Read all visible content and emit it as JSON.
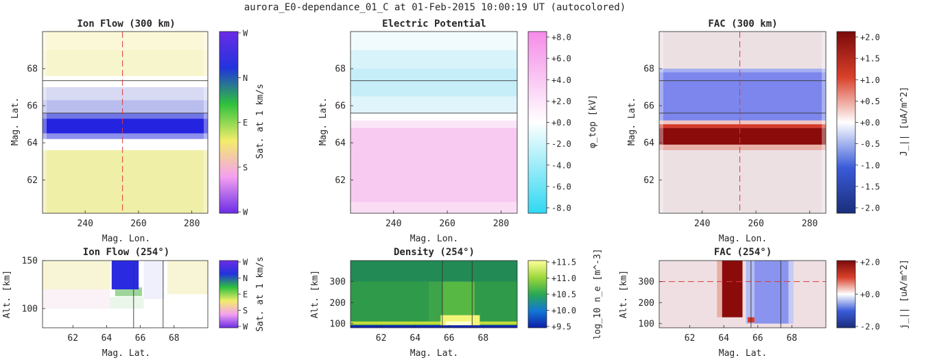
{
  "figure": {
    "suptitle": "aurora_E0-dependance_01_C at 01-Feb-2015 10:00:19 UT (autocolored)"
  },
  "colors": {
    "flow_wheel": [
      "#6a2ce6",
      "#f4a0f0",
      "#f2ed6a",
      "#2fc23c",
      "#2233dd",
      "#6a2ce6"
    ],
    "potential": [
      "#2fd8f2",
      "#ffffff",
      "#f58be8"
    ],
    "fac": [
      "#1a2e7a",
      "#3a5bd9",
      "#ffffff",
      "#d9402a",
      "#7a0a0a"
    ],
    "density": [
      "#0d1ea8",
      "#1277d6",
      "#2aa852",
      "#9ed83a",
      "#ffff99"
    ],
    "marker_line": "#d93a3a",
    "arc_line": "#333333"
  },
  "chart_data": [
    {
      "id": "ion-flow-map",
      "type": "heatmap",
      "title": "Ion Flow (300 km)",
      "xlabel": "Mag. Lon.",
      "ylabel": "Mag. Lat.",
      "xlim": [
        224,
        286
      ],
      "ylim": [
        60.2,
        70
      ],
      "xticks": [
        240,
        260,
        280
      ],
      "yticks": [
        62,
        64,
        66,
        68
      ],
      "hlines": [
        65.6,
        67.35
      ],
      "vline": 254,
      "colorbar": {
        "label": "Sat. at 1 km/s",
        "ticks": [
          "W",
          "N",
          "E",
          "S",
          "W"
        ],
        "colormap": "flow_wheel",
        "reversed": true
      },
      "bands": [
        {
          "from": 69.0,
          "to": 70.0,
          "color": "#fbf8d8"
        },
        {
          "from": 67.6,
          "to": 69.0,
          "color": "#f7f5cb"
        },
        {
          "from": 67.0,
          "to": 67.6,
          "color": "#ffffff"
        },
        {
          "from": 66.3,
          "to": 67.0,
          "color": "#d8d9f3"
        },
        {
          "from": 65.6,
          "to": 66.3,
          "color": "#b9bdee"
        },
        {
          "from": 65.3,
          "to": 65.6,
          "color": "#6f76e6"
        },
        {
          "from": 64.5,
          "to": 65.3,
          "color": "#2323e0"
        },
        {
          "from": 64.2,
          "to": 64.5,
          "color": "#8c90ec"
        },
        {
          "from": 63.6,
          "to": 64.2,
          "color": "#ffffff"
        },
        {
          "from": 60.2,
          "to": 63.6,
          "color": "#f0efa8"
        }
      ]
    },
    {
      "id": "electric-potential-map",
      "type": "heatmap",
      "title": "Electric Potential",
      "xlabel": "Mag. Lon.",
      "ylabel": "Mag. Lat.",
      "xlim": [
        224,
        286
      ],
      "ylim": [
        60.2,
        70
      ],
      "xticks": [
        240,
        260,
        280
      ],
      "yticks": [
        62,
        64,
        66,
        68
      ],
      "hlines": [
        65.6,
        67.35
      ],
      "vline": null,
      "colorbar": {
        "label": "φ_top [kV]",
        "ticks": [
          "+8.0",
          "+6.0",
          "+4.0",
          "+2.0",
          "+0.0",
          "-2.0",
          "-4.0",
          "-6.0",
          "-8.0"
        ],
        "colormap": "potential",
        "reversed": true
      },
      "bands": [
        {
          "from": 69.0,
          "to": 70.0,
          "color": "#f1fbfd"
        },
        {
          "from": 68.0,
          "to": 69.0,
          "color": "#d9f3fa"
        },
        {
          "from": 66.5,
          "to": 68.0,
          "color": "#c6eef8"
        },
        {
          "from": 65.6,
          "to": 66.5,
          "color": "#dff5fb"
        },
        {
          "from": 65.2,
          "to": 65.6,
          "color": "#ffffff"
        },
        {
          "from": 64.8,
          "to": 65.2,
          "color": "#fbe6f8"
        },
        {
          "from": 60.8,
          "to": 64.8,
          "color": "#f8c9f1"
        },
        {
          "from": 60.2,
          "to": 60.8,
          "color": "#fadcf5"
        }
      ]
    },
    {
      "id": "fac-map",
      "type": "heatmap",
      "title": "FAC (300 km)",
      "xlabel": "Mag. Lon.",
      "ylabel": "Mag. Lat.",
      "xlim": [
        224,
        286
      ],
      "ylim": [
        60.2,
        70
      ],
      "xticks": [
        240,
        260,
        280
      ],
      "yticks": [
        62,
        64,
        66,
        68
      ],
      "hlines": [
        65.6,
        67.35
      ],
      "vline": 254,
      "colorbar": {
        "label": "J_|| [uA/m^2]",
        "ticks": [
          "+2.0",
          "+1.5",
          "+1.0",
          "+0.5",
          "+0.0",
          "-0.5",
          "-1.0",
          "-1.5",
          "-2.0"
        ],
        "colormap": "fac",
        "reversed": true
      },
      "bands": [
        {
          "from": 68.0,
          "to": 70.0,
          "color": "#ece0e3"
        },
        {
          "from": 67.8,
          "to": 68.0,
          "color": "#a4aef0"
        },
        {
          "from": 65.2,
          "to": 67.8,
          "color": "#7c86ec"
        },
        {
          "from": 65.0,
          "to": 65.2,
          "color": "#f0c6c2"
        },
        {
          "from": 64.8,
          "to": 65.0,
          "color": "#d63a2a"
        },
        {
          "from": 63.9,
          "to": 64.8,
          "color": "#8b0b0b"
        },
        {
          "from": 63.6,
          "to": 63.9,
          "color": "#e8b0a8"
        },
        {
          "from": 60.2,
          "to": 63.6,
          "color": "#ece0e3"
        }
      ]
    },
    {
      "id": "ion-flow-profile",
      "type": "heatmap",
      "title": "Ion Flow (254°)",
      "xlabel": "Mag. Lat.",
      "ylabel": "Alt. [km]",
      "xlim": [
        60.2,
        70
      ],
      "ylim": [
        80,
        150
      ],
      "xticks": [
        62,
        64,
        66,
        68
      ],
      "yticks": [
        100,
        150
      ],
      "vlines": [
        65.6,
        67.35
      ],
      "hline": null,
      "colorbar": {
        "label": "Sat. at 1 km/s",
        "ticks": [
          "W",
          "N",
          "E",
          "S",
          "W"
        ],
        "colormap": "flow_wheel",
        "reversed": true
      },
      "background": "#ffffff",
      "regions": [
        {
          "x": [
            60.2,
            64.2
          ],
          "y": [
            120,
            150
          ],
          "color": "#f8f5d6"
        },
        {
          "x": [
            60.2,
            64.2
          ],
          "y": [
            100,
            120
          ],
          "color": "#faf2f6"
        },
        {
          "x": [
            67.6,
            70.0
          ],
          "y": [
            115,
            150
          ],
          "color": "#f8f5d6"
        },
        {
          "x": [
            66.2,
            67.4
          ],
          "y": [
            110,
            150
          ],
          "color": "#eff0fb"
        },
        {
          "x": [
            64.2,
            66.2
          ],
          "y": [
            100,
            112
          ],
          "color": "#eaf6ea"
        },
        {
          "x": [
            64.5,
            66.1
          ],
          "y": [
            113,
            122
          ],
          "color": "#9ed59a"
        },
        {
          "x": [
            64.3,
            65.9
          ],
          "y": [
            120,
            150
          ],
          "color": "#2a2ae0"
        }
      ]
    },
    {
      "id": "density-profile",
      "type": "heatmap",
      "title": "Density (254°)",
      "xlabel": "Mag. Lat.",
      "ylabel": "Alt. [km]",
      "xlim": [
        60.2,
        70
      ],
      "ylim": [
        80,
        400
      ],
      "xticks": [
        62,
        64,
        66,
        68
      ],
      "yticks": [
        100,
        200,
        300
      ],
      "vlines": [
        65.6,
        67.35
      ],
      "hline": null,
      "colorbar": {
        "label": "log_10 n_e [m^-3]",
        "ticks": [
          "+11.5",
          "+11.0",
          "+10.5",
          "+10.0",
          "+9.5"
        ],
        "colormap": "density",
        "reversed": true
      },
      "background": "#2f9a4a",
      "regions": [
        {
          "x": [
            60.2,
            70.0
          ],
          "y": [
            300,
            400
          ],
          "color": "#228a55"
        },
        {
          "x": [
            60.2,
            64.8
          ],
          "y": [
            100,
            300
          ],
          "color": "#2f9a4a"
        },
        {
          "x": [
            68.2,
            70.0
          ],
          "y": [
            100,
            300
          ],
          "color": "#2f9a4a"
        },
        {
          "x": [
            64.8,
            65.6
          ],
          "y": [
            100,
            300
          ],
          "color": "#3ea44a"
        },
        {
          "x": [
            65.6,
            67.5
          ],
          "y": [
            100,
            300
          ],
          "color": "#58b844"
        },
        {
          "x": [
            60.2,
            70.0
          ],
          "y": [
            95,
            110
          ],
          "color": "#c3dc3c"
        },
        {
          "x": [
            65.5,
            67.8
          ],
          "y": [
            90,
            140
          ],
          "color": "#f3f578"
        },
        {
          "x": [
            65.8,
            67.3
          ],
          "y": [
            92,
            110
          ],
          "color": "#ffffd2"
        },
        {
          "x": [
            60.2,
            70.0
          ],
          "y": [
            80,
            92
          ],
          "color": "#1224b4"
        }
      ]
    },
    {
      "id": "fac-profile",
      "type": "heatmap",
      "title": "FAC (254°)",
      "xlabel": "Mag. Lat.",
      "ylabel": "Alt. [km]",
      "xlim": [
        60.2,
        70
      ],
      "ylim": [
        80,
        400
      ],
      "xticks": [
        62,
        64,
        66,
        68
      ],
      "yticks": [
        100,
        200,
        300
      ],
      "vlines": [
        65.6,
        67.35
      ],
      "hline": 300,
      "colorbar": {
        "label": "j_|| [uA/m^2]",
        "ticks": [
          "+2.0",
          "+0.0",
          "-2.0"
        ],
        "colormap": "fac",
        "reversed": true
      },
      "background": "#efdfe2",
      "regions": [
        {
          "x": [
            63.6,
            63.9
          ],
          "y": [
            130,
            400
          ],
          "color": "#e8b0a8"
        },
        {
          "x": [
            63.9,
            65.1
          ],
          "y": [
            130,
            400
          ],
          "color": "#8b0b0b"
        },
        {
          "x": [
            65.3,
            65.8
          ],
          "y": [
            100,
            400
          ],
          "color": "#b4bcf4"
        },
        {
          "x": [
            65.8,
            67.8
          ],
          "y": [
            100,
            400
          ],
          "color": "#8a94ee"
        },
        {
          "x": [
            67.8,
            68.1
          ],
          "y": [
            100,
            400
          ],
          "color": "#c5cbf5"
        },
        {
          "x": [
            65.4,
            65.8
          ],
          "y": [
            105,
            130
          ],
          "color": "#d73a2a"
        }
      ]
    }
  ]
}
